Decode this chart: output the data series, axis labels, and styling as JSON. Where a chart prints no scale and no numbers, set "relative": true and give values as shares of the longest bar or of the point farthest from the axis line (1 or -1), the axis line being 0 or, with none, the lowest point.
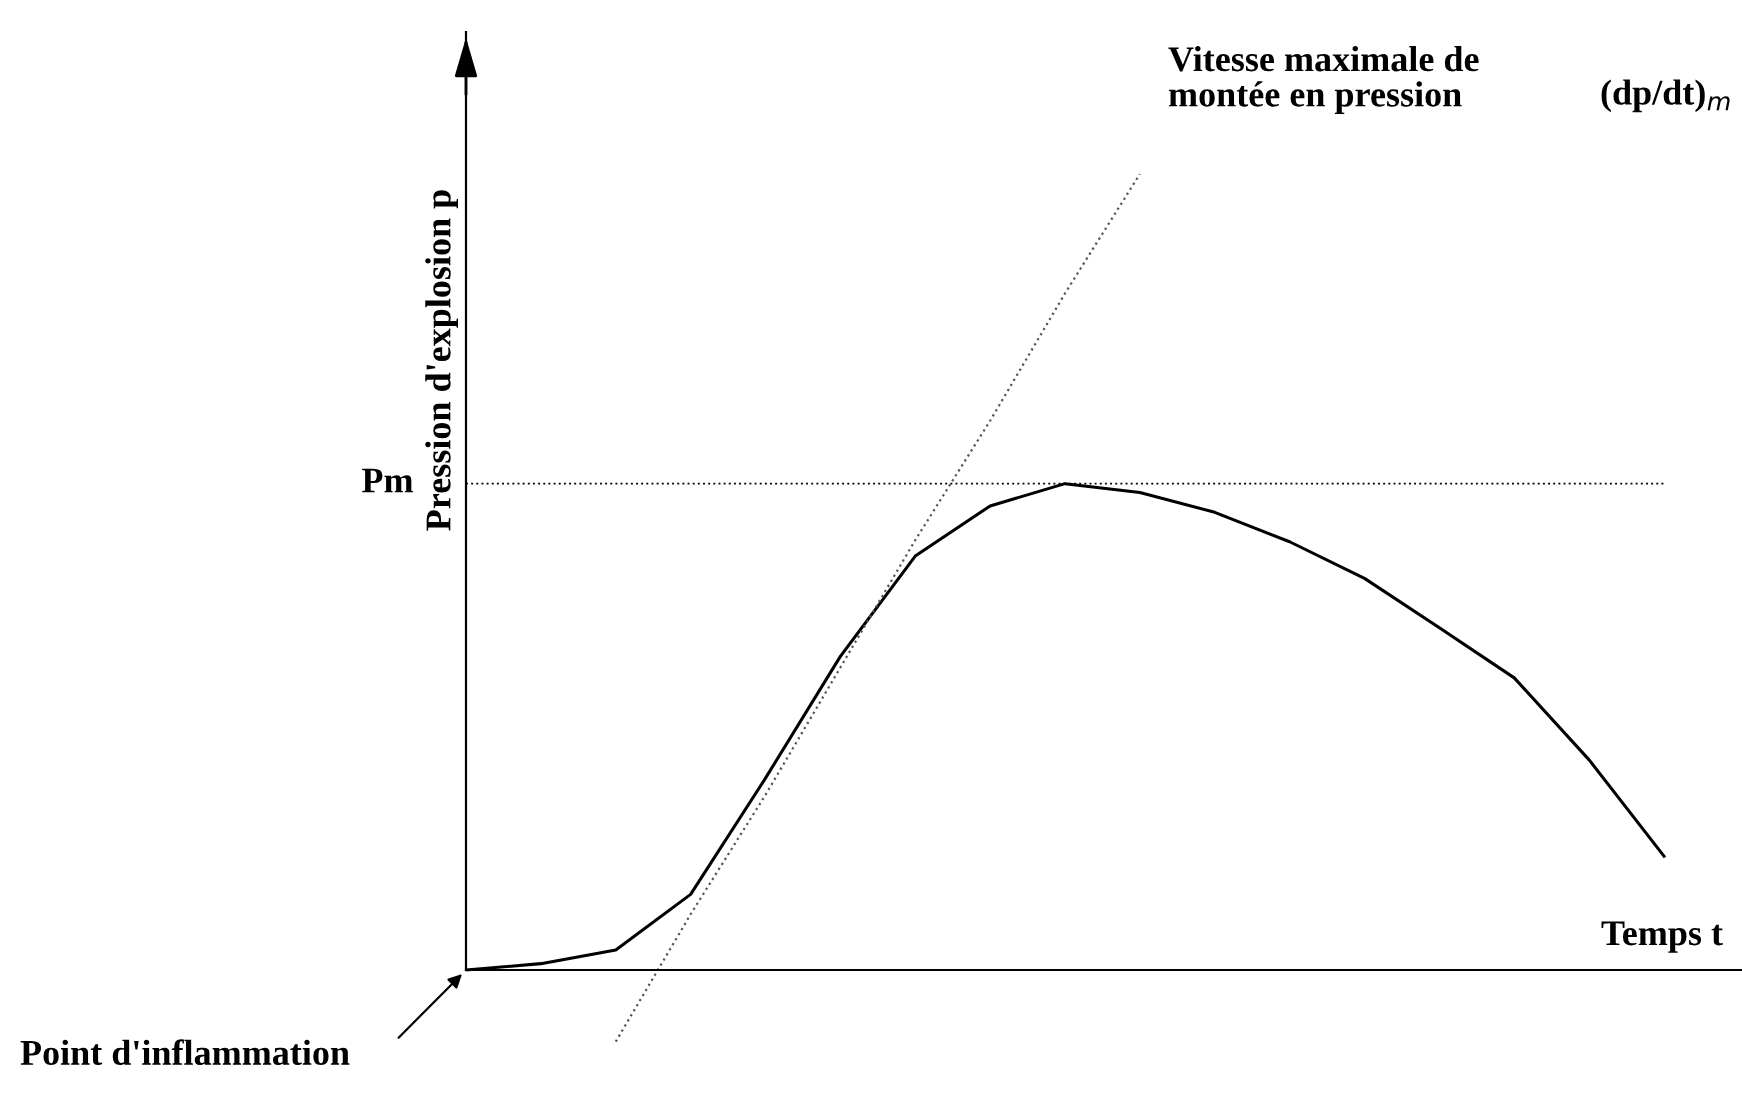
{
  "chart_data": {
    "type": "line",
    "relative": true,
    "xlabel": "Temps t",
    "ylabel": "Pression d'explosion p",
    "categories": [
      null,
      null,
      null,
      null,
      null,
      null,
      null,
      null,
      null,
      null,
      null,
      null,
      null,
      null,
      null,
      null,
      null
    ],
    "series": [
      {
        "color": "#000000",
        "values": [
          0,
          0.008,
          0.025,
          0.095,
          0.241,
          0.394,
          0.52,
          0.583,
          0.611,
          0.6,
          0.575,
          0.538,
          0.492,
          0.43,
          0.367,
          0.264,
          0.143
        ]
      },
      {
        "color": "#555555",
        "line_style": "dotted",
        "values": [
          null,
          null,
          -0.09,
          0.07,
          0.22,
          0.38,
          0.54,
          0.69,
          0.85,
          1.0,
          null,
          null,
          null,
          null,
          null,
          null,
          null
        ]
      }
    ],
    "ref_lines": [
      {
        "axis": "y",
        "value": 0.611,
        "label": "Pm",
        "color": "#000000",
        "line_style": "dotted"
      }
    ],
    "annotations": [
      "Vitesse maximale de\nmontée en pression",
      "(dp/dt)$_{m}$",
      "Point d'inflammation"
    ],
    "marker": "none",
    "line_style": "solid",
    "legend": false
  }
}
